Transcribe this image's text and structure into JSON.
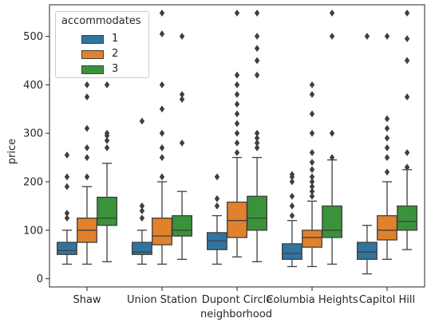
{
  "chart_data": {
    "type": "box",
    "xlabel": "neighborhood",
    "ylabel": "price",
    "categories": [
      "Shaw",
      "Union Station",
      "Dupont Circle",
      "Columbia Heights",
      "Capitol Hill"
    ],
    "yticks": [
      0,
      100,
      200,
      300,
      400,
      500
    ],
    "ylim": [
      -17,
      565
    ],
    "grid": false,
    "legend": {
      "title": "accommodates",
      "placement": "top-left"
    },
    "series": [
      {
        "name": "1",
        "color": "#3274a1",
        "boxes": [
          {
            "whisker_low": 30,
            "q1": 50,
            "median": 58,
            "q3": 75,
            "whisker_high": 100,
            "outliers": [
              125,
              135,
              190,
              210,
              255
            ]
          },
          {
            "whisker_low": 30,
            "q1": 50,
            "median": 55,
            "q3": 75,
            "whisker_high": 100,
            "outliers": [
              125,
              140,
              150,
              325
            ]
          },
          {
            "whisker_low": 30,
            "q1": 60,
            "median": 78,
            "q3": 95,
            "whisker_high": 130,
            "outliers": [
              150,
              165,
              210
            ]
          },
          {
            "whisker_low": 25,
            "q1": 40,
            "median": 52,
            "q3": 72,
            "whisker_high": 120,
            "outliers": [
              130,
              150,
              170,
              200,
              210,
              215
            ]
          },
          {
            "whisker_low": 10,
            "q1": 40,
            "median": 55,
            "q3": 75,
            "whisker_high": 110,
            "outliers": [
              500
            ]
          }
        ]
      },
      {
        "name": "2",
        "color": "#e1812c",
        "boxes": [
          {
            "whisker_low": 30,
            "q1": 75,
            "median": 100,
            "q3": 125,
            "whisker_high": 190,
            "outliers": [
              210,
              250,
              270,
              310,
              375,
              400
            ]
          },
          {
            "whisker_low": 30,
            "q1": 70,
            "median": 88,
            "q3": 125,
            "whisker_high": 200,
            "outliers": [
              210,
              250,
              270,
              300,
              350,
              400,
              505,
              548
            ]
          },
          {
            "whisker_low": 45,
            "q1": 85,
            "median": 120,
            "q3": 158,
            "whisker_high": 250,
            "outliers": [
              260,
              280,
              300,
              320,
              340,
              360,
              380,
              400,
              420,
              548
            ]
          },
          {
            "whisker_low": 25,
            "q1": 65,
            "median": 85,
            "q3": 100,
            "whisker_high": 160,
            "outliers": [
              170,
              180,
              190,
              200,
              210,
              225,
              240,
              260,
              300,
              340,
              380,
              400
            ]
          },
          {
            "whisker_low": 40,
            "q1": 80,
            "median": 100,
            "q3": 130,
            "whisker_high": 200,
            "outliers": [
              220,
              250,
              270,
              290,
              310,
              330,
              500
            ]
          }
        ]
      },
      {
        "name": "3",
        "color": "#3a923a",
        "boxes": [
          {
            "whisker_low": 35,
            "q1": 110,
            "median": 125,
            "q3": 168,
            "whisker_high": 238,
            "outliers": [
              270,
              285,
              295,
              300,
              400
            ]
          },
          {
            "whisker_low": 40,
            "q1": 88,
            "median": 100,
            "q3": 130,
            "whisker_high": 180,
            "outliers": [
              280,
              370,
              380,
              500
            ]
          },
          {
            "whisker_low": 35,
            "q1": 100,
            "median": 125,
            "q3": 170,
            "whisker_high": 250,
            "outliers": [
              270,
              280,
              290,
              300,
              420,
              450,
              475,
              500,
              548
            ]
          },
          {
            "whisker_low": 30,
            "q1": 85,
            "median": 100,
            "q3": 150,
            "whisker_high": 245,
            "outliers": [
              250,
              300,
              500,
              548
            ]
          },
          {
            "whisker_low": 60,
            "q1": 100,
            "median": 118,
            "q3": 150,
            "whisker_high": 225,
            "outliers": [
              230,
              260,
              375,
              450,
              495,
              548
            ]
          }
        ]
      }
    ]
  }
}
